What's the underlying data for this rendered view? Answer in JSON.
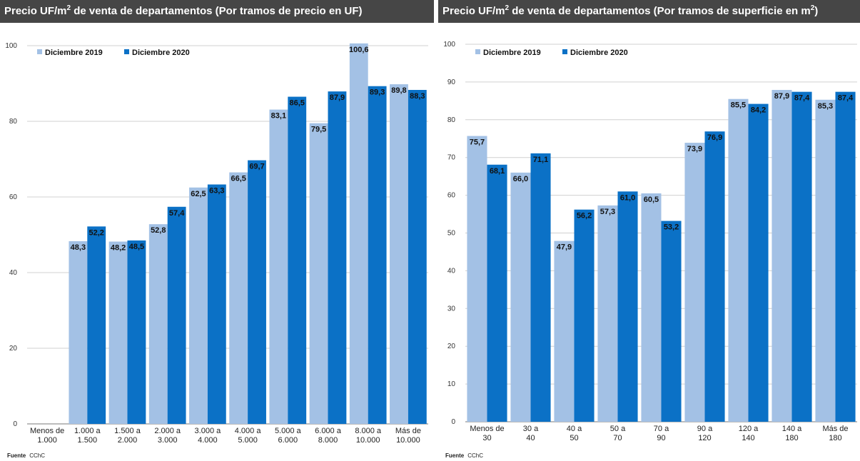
{
  "colors": {
    "series_2019": "#a3c1e5",
    "series_2020": "#0b71c6",
    "title_bg": "#464646"
  },
  "footer": {
    "label": "Fuente",
    "value": "CChC"
  },
  "chart_data": [
    {
      "type": "bar",
      "title_main": "Precio UF/m",
      "title_sup": "2",
      "title_rest": " de venta de departamentos (Por tramos de precio en UF)",
      "title_rest_sup": "",
      "title_end": "",
      "categories": [
        [
          "Menos de",
          "1.000"
        ],
        [
          "1.000 a",
          "1.500"
        ],
        [
          "1.500 a",
          "2.000"
        ],
        [
          "2.000 a",
          "3.000"
        ],
        [
          "3.000 a",
          "4.000"
        ],
        [
          "4.000 a",
          "5.000"
        ],
        [
          "5.000 a",
          "6.000"
        ],
        [
          "6.000 a",
          "8.000"
        ],
        [
          "8.000 a",
          "10.000"
        ],
        [
          "Más de",
          "10.000"
        ]
      ],
      "series": [
        {
          "name": "Diciembre 2019",
          "values": [
            null,
            48.3,
            48.2,
            52.8,
            62.5,
            66.5,
            83.1,
            79.5,
            100.6,
            89.8
          ],
          "labels": [
            "",
            "48,3",
            "48,2",
            "52,8",
            "62,5",
            "66,5",
            "83,1",
            "79,5",
            "100,6",
            "89,8"
          ]
        },
        {
          "name": "Diciembre 2020",
          "values": [
            null,
            52.2,
            48.5,
            57.4,
            63.3,
            69.7,
            86.5,
            87.9,
            89.3,
            88.3
          ],
          "labels": [
            "",
            "52,2",
            "48,5",
            "57,4",
            "63,3",
            "69,7",
            "86,5",
            "87,9",
            "89,3",
            "88,3"
          ]
        }
      ],
      "ylim": [
        0,
        100
      ],
      "yticks": [
        0,
        20,
        40,
        60,
        80,
        100
      ],
      "grid": true,
      "legend": "top-left"
    },
    {
      "type": "bar",
      "title_main": "Precio UF/m",
      "title_sup": "2",
      "title_rest": " de venta de departamentos (Por tramos de superficie en m",
      "title_rest_sup": "2",
      "title_end": ")",
      "categories": [
        [
          "Menos de",
          "30"
        ],
        [
          "30 a",
          "40"
        ],
        [
          "40 a",
          "50"
        ],
        [
          "50 a",
          "70"
        ],
        [
          "70 a",
          "90"
        ],
        [
          "90 a",
          "120"
        ],
        [
          "120 a",
          "140"
        ],
        [
          "140 a",
          "180"
        ],
        [
          "Más de",
          "180"
        ]
      ],
      "series": [
        {
          "name": "Diciembre 2019",
          "values": [
            75.7,
            66.0,
            47.9,
            57.3,
            60.5,
            73.9,
            85.5,
            87.9,
            85.3
          ],
          "labels": [
            "75,7",
            "66,0",
            "47,9",
            "57,3",
            "60,5",
            "73,9",
            "85,5",
            "87,9",
            "85,3"
          ]
        },
        {
          "name": "Diciembre 2020",
          "values": [
            68.1,
            71.1,
            56.2,
            61.0,
            53.2,
            76.9,
            84.2,
            87.4,
            87.4
          ],
          "labels": [
            "68,1",
            "71,1",
            "56,2",
            "61,0",
            "53,2",
            "76,9",
            "84,2",
            "87,4",
            "87,4"
          ]
        }
      ],
      "ylim": [
        0,
        100
      ],
      "yticks": [
        0,
        10,
        20,
        30,
        40,
        50,
        60,
        70,
        80,
        90,
        100
      ],
      "grid": true,
      "legend": "top-left"
    }
  ]
}
